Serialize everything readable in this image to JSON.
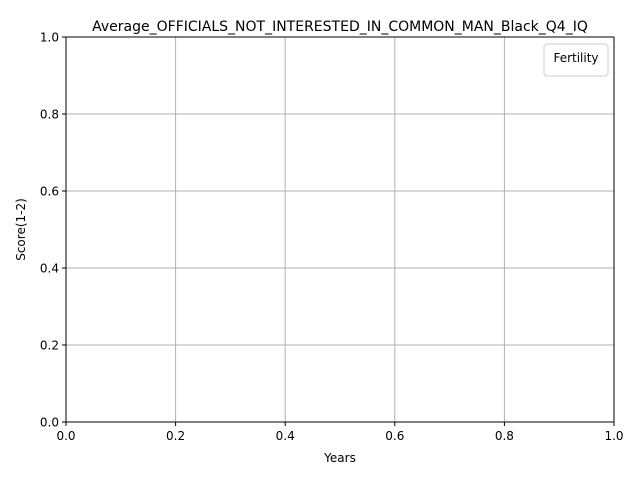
{
  "chart_data": {
    "type": "line",
    "title": "Average_OFFICIALS_NOT_INTERESTED_IN_COMMON_MAN_Black_Q4_IQ",
    "xlabel": "Years",
    "ylabel": "Score(1-2)",
    "xlim": [
      0.0,
      1.0
    ],
    "ylim": [
      0.0,
      1.0
    ],
    "x_ticks": [
      "0.0",
      "0.2",
      "0.4",
      "0.6",
      "0.8",
      "1.0"
    ],
    "y_ticks": [
      "0.0",
      "0.2",
      "0.4",
      "0.6",
      "0.8",
      "1.0"
    ],
    "grid": true,
    "legend": {
      "title": "Fertility",
      "placement": "top-right",
      "entries": []
    },
    "series": []
  },
  "colors": {
    "background": "#ffffff",
    "axes": "#000000",
    "grid": "#b0b0b0",
    "legend_border": "#cccccc"
  }
}
